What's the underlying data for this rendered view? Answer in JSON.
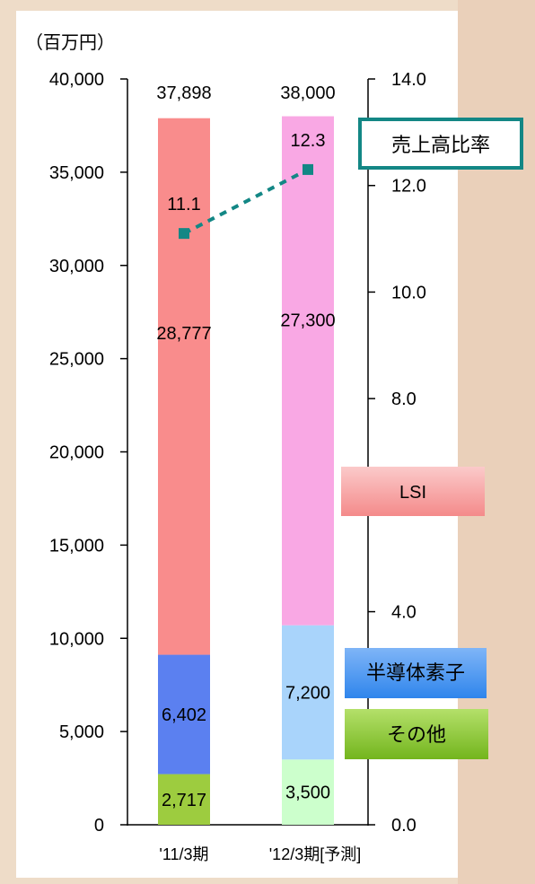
{
  "chart_data": {
    "type": "bar",
    "stacked": true,
    "categories": [
      "'11/3期",
      "'12/3期[予測]"
    ],
    "y_unit_label": "（百万円）",
    "ylim": [
      0,
      40000
    ],
    "y_ticks": [
      "0",
      "5,000",
      "10,000",
      "15,000",
      "20,000",
      "25,000",
      "30,000",
      "35,000",
      "40,000"
    ],
    "y2lim": [
      0,
      14
    ],
    "y2_ticks": [
      "0.0",
      "",
      "4.0",
      "",
      "8.0",
      "10.0",
      "12.0",
      "14.0"
    ],
    "series": [
      {
        "name": "その他",
        "values": [
          2717,
          3500
        ],
        "labels": [
          "2,717",
          "3,500"
        ],
        "colors": [
          "#9dcc3f",
          "#ccffcc"
        ]
      },
      {
        "name": "半導体素子",
        "values": [
          6402,
          7200
        ],
        "labels": [
          "6,402",
          "7,200"
        ],
        "colors": [
          "#5b80f0",
          "#a9d4fb"
        ]
      },
      {
        "name": "LSI",
        "values": [
          28777,
          27300
        ],
        "labels": [
          "28,777",
          "27,300"
        ],
        "colors": [
          "#f98c8c",
          "#f9a8e4"
        ]
      }
    ],
    "totals": [
      37898,
      38000
    ],
    "total_labels": [
      "37,898",
      "38,000"
    ],
    "line": {
      "name": "売上高比率",
      "values": [
        11.1,
        12.3
      ],
      "labels": [
        "11.1",
        "12.3"
      ],
      "color": "#138785"
    },
    "legend": {
      "line_label": "売上高比率",
      "items": [
        {
          "label": "LSI",
          "color": "#f9a8a8"
        },
        {
          "label": "半導体素子",
          "color": "#3d93ee"
        },
        {
          "label": "その他",
          "color": "#84c12e"
        }
      ]
    },
    "grid": false
  }
}
